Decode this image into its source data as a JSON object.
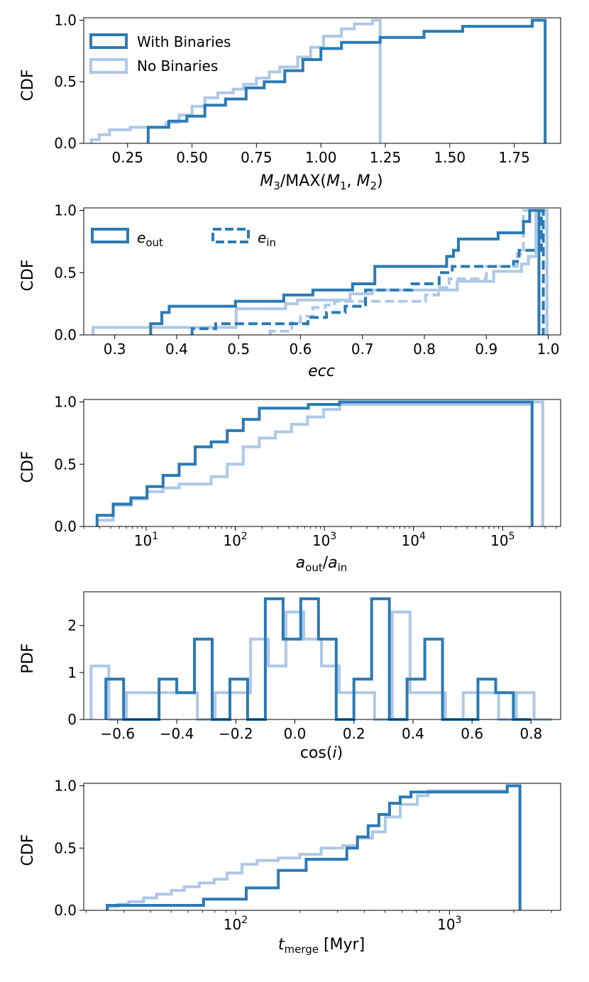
{
  "colors": {
    "dark": "#2a7ab5",
    "light": "#aec8e6",
    "axis": "#000000"
  },
  "legend1": {
    "labels": [
      "With Binaries",
      "No Binaries"
    ]
  },
  "legend2": {
    "labels": [
      "e_out",
      "e_in"
    ]
  },
  "chart_data": [
    {
      "type": "histogram-step-cdf",
      "ylabel": "CDF",
      "xlabel": "M3/MAX(M1, M2)",
      "xlim": [
        0.08,
        1.93
      ],
      "ylim": [
        0,
        1.02
      ],
      "xticks": [
        0.25,
        0.5,
        0.75,
        1.0,
        1.25,
        1.5,
        1.75
      ],
      "xtick_labels": [
        "0.25",
        "0.50",
        "0.75",
        "1.00",
        "1.25",
        "1.50",
        "1.75"
      ],
      "yticks": [
        0.0,
        0.5,
        1.0
      ],
      "ytick_labels": [
        "0.0",
        "0.5",
        "1.0"
      ],
      "legend": "top-left",
      "series": [
        {
          "name": "With Binaries",
          "color": "#2a7ab5",
          "edges": [
            0.33,
            0.41,
            0.48,
            0.55,
            0.63,
            0.71,
            0.78,
            0.86,
            0.93,
            1.0,
            1.08,
            1.23,
            1.4,
            1.55,
            1.82,
            1.87
          ],
          "values": [
            0.13,
            0.18,
            0.22,
            0.31,
            0.36,
            0.45,
            0.5,
            0.59,
            0.68,
            0.77,
            0.82,
            0.86,
            0.91,
            0.95,
            1.0
          ]
        },
        {
          "name": "No Binaries",
          "color": "#aec8e6",
          "edges": [
            0.11,
            0.14,
            0.18,
            0.26,
            0.4,
            0.45,
            0.5,
            0.55,
            0.6,
            0.66,
            0.7,
            0.75,
            0.8,
            0.84,
            0.91,
            0.96,
            1.01,
            1.08,
            1.13,
            1.2,
            1.23
          ],
          "values": [
            0.03,
            0.07,
            0.11,
            0.13,
            0.17,
            0.23,
            0.3,
            0.37,
            0.41,
            0.44,
            0.48,
            0.53,
            0.58,
            0.62,
            0.7,
            0.78,
            0.87,
            0.93,
            0.97,
            1.0
          ]
        }
      ]
    },
    {
      "type": "histogram-step-cdf",
      "ylabel": "CDF",
      "xlabel": "ecc",
      "xlim": [
        0.25,
        1.02
      ],
      "ylim": [
        0,
        1.02
      ],
      "xticks": [
        0.3,
        0.4,
        0.5,
        0.6,
        0.7,
        0.8,
        0.9,
        1.0
      ],
      "xtick_labels": [
        "0.3",
        "0.4",
        "0.5",
        "0.6",
        "0.7",
        "0.8",
        "0.9",
        "1.0"
      ],
      "yticks": [
        0.0,
        0.5,
        1.0
      ],
      "ytick_labels": [
        "0.0",
        "0.5",
        "1.0"
      ],
      "legend": "top-left",
      "series": [
        {
          "name": "e_out",
          "group": "With Binaries",
          "dash": false,
          "color": "#2a7ab5",
          "edges": [
            0.358,
            0.376,
            0.388,
            0.495,
            0.573,
            0.62,
            0.684,
            0.72,
            0.836,
            0.847,
            0.855,
            0.919,
            0.96,
            0.97,
            0.982,
            0.985
          ],
          "values": [
            0.09,
            0.18,
            0.23,
            0.27,
            0.32,
            0.36,
            0.41,
            0.55,
            0.63,
            0.68,
            0.77,
            0.82,
            0.91,
            1.0,
            1.0
          ]
        },
        {
          "name": "No Binaries e_out",
          "group": "No Binaries",
          "dash": false,
          "color": "#aec8e6",
          "edges": [
            0.265,
            0.496,
            0.576,
            0.595,
            0.68,
            0.716,
            0.853,
            0.912,
            0.957,
            0.968,
            0.98,
            0.998
          ],
          "values": [
            0.06,
            0.21,
            0.25,
            0.28,
            0.33,
            0.36,
            0.43,
            0.51,
            0.57,
            0.63,
            1.0
          ]
        },
        {
          "name": "e_in",
          "group": "With Binaries",
          "dash": true,
          "color": "#2a7ab5",
          "edges": [
            0.425,
            0.463,
            0.612,
            0.642,
            0.672,
            0.705,
            0.78,
            0.824,
            0.845,
            0.944,
            0.953,
            0.989,
            0.992
          ],
          "values": [
            0.05,
            0.09,
            0.14,
            0.18,
            0.23,
            0.36,
            0.41,
            0.5,
            0.55,
            0.59,
            0.68,
            1.0
          ]
        },
        {
          "name": "No Binaries e_in",
          "group": "No Binaries",
          "dash": true,
          "color": "#aec8e6",
          "edges": [
            0.551,
            0.586,
            0.6,
            0.62,
            0.64,
            0.655,
            0.802,
            0.823,
            0.84,
            0.9,
            0.95,
            0.96,
            0.998
          ],
          "values": [
            0.03,
            0.1,
            0.15,
            0.22,
            0.24,
            0.27,
            0.32,
            0.38,
            0.45,
            0.55,
            0.65,
            1.0
          ]
        }
      ]
    },
    {
      "type": "histogram-step-cdf",
      "ylabel": "CDF",
      "xlabel": "a_out/a_in",
      "xscale": "log",
      "xlim_log10": [
        0.3,
        5.65
      ],
      "ylim": [
        0,
        1.02
      ],
      "xticks_log10": [
        1,
        2,
        3,
        4,
        5
      ],
      "xtick_labels": [
        "10^1",
        "10^2",
        "10^3",
        "10^4",
        "10^5"
      ],
      "yticks": [
        0.0,
        0.5,
        1.0
      ],
      "ytick_labels": [
        "0.0",
        "0.5",
        "1.0"
      ],
      "series": [
        {
          "name": "With Binaries",
          "color": "#2a7ab5",
          "edges_log10": [
            0.45,
            0.63,
            0.83,
            1.01,
            1.19,
            1.37,
            1.55,
            1.73,
            1.91,
            2.09,
            2.27,
            2.45,
            2.82,
            3.17,
            5.33
          ],
          "values": [
            0.09,
            0.18,
            0.23,
            0.32,
            0.41,
            0.5,
            0.64,
            0.68,
            0.77,
            0.86,
            0.95,
            0.95,
            0.98,
            1.0
          ]
        },
        {
          "name": "No Binaries",
          "color": "#aec8e6",
          "edges_log10": [
            0.45,
            0.63,
            0.83,
            1.01,
            1.19,
            1.37,
            1.55,
            1.73,
            1.91,
            2.09,
            2.27,
            2.45,
            2.63,
            2.81,
            2.99,
            3.17,
            5.33,
            5.45
          ],
          "values": [
            0.05,
            0.17,
            0.22,
            0.28,
            0.31,
            0.34,
            0.34,
            0.4,
            0.5,
            0.64,
            0.71,
            0.76,
            0.82,
            0.88,
            0.94,
            0.98,
            1.0
          ]
        }
      ]
    },
    {
      "type": "histogram-step-pdf",
      "ylabel": "PDF",
      "xlabel": "cos(i)",
      "xlim": [
        -0.715,
        0.9
      ],
      "ylim": [
        0,
        2.72
      ],
      "xticks": [
        -0.6,
        -0.4,
        -0.2,
        0.0,
        0.2,
        0.4,
        0.6,
        0.8
      ],
      "xtick_labels": [
        "−0.6",
        "−0.4",
        "−0.2",
        "0.0",
        "0.2",
        "0.4",
        "0.6",
        "0.8"
      ],
      "yticks": [
        0,
        1,
        2
      ],
      "ytick_labels": [
        "0",
        "1",
        "2"
      ],
      "series": [
        {
          "name": "With Binaries",
          "color": "#2a7ab5",
          "edges": [
            -0.64,
            -0.58,
            -0.52,
            -0.46,
            -0.4,
            -0.34,
            -0.28,
            -0.22,
            -0.16,
            -0.1,
            -0.04,
            0.02,
            0.08,
            0.14,
            0.2,
            0.26,
            0.32,
            0.38,
            0.44,
            0.5,
            0.56,
            0.62,
            0.68,
            0.74,
            0.8
          ],
          "values": [
            0.86,
            0,
            0,
            0.86,
            0.57,
            1.71,
            0,
            0.86,
            0,
            2.57,
            1.71,
            2.57,
            1.71,
            0,
            0.86,
            2.57,
            0,
            0.86,
            1.71,
            0,
            0,
            0.86,
            0.57,
            0
          ]
        },
        {
          "name": "No Binaries",
          "color": "#aec8e6",
          "edges": [
            -0.69,
            -0.63,
            -0.57,
            -0.51,
            -0.45,
            -0.39,
            -0.33,
            -0.27,
            -0.21,
            -0.15,
            -0.09,
            -0.03,
            0.03,
            0.09,
            0.15,
            0.21,
            0.27,
            0.33,
            0.39,
            0.45,
            0.51,
            0.57,
            0.63,
            0.69,
            0.75,
            0.81,
            0.87
          ],
          "values": [
            1.14,
            0,
            0.57,
            0.57,
            0.57,
            0.57,
            0,
            0.57,
            0.57,
            1.71,
            1.14,
            2.29,
            1.71,
            1.14,
            0.57,
            0.57,
            0,
            2.29,
            0.57,
            0.57,
            0,
            0.57,
            0.57,
            0,
            0.57,
            0
          ]
        }
      ]
    },
    {
      "type": "histogram-step-cdf",
      "ylabel": "CDF",
      "xlabel": "t_merge [Myr]",
      "xscale": "log",
      "xlim_log10": [
        1.29,
        3.52
      ],
      "ylim": [
        0,
        1.02
      ],
      "xticks_log10": [
        2,
        3
      ],
      "xtick_labels": [
        "10^2",
        "10^3"
      ],
      "yticks": [
        0.0,
        0.5,
        1.0
      ],
      "ytick_labels": [
        "0.0",
        "0.5",
        "1.0"
      ],
      "series": [
        {
          "name": "With Binaries",
          "color": "#2a7ab5",
          "edges_log10": [
            1.4,
            1.85,
            2.05,
            2.2,
            2.33,
            2.52,
            2.57,
            2.62,
            2.67,
            2.72,
            2.77,
            2.82,
            2.87,
            3.27,
            3.33
          ],
          "values": [
            0.04,
            0.09,
            0.18,
            0.32,
            0.41,
            0.5,
            0.59,
            0.68,
            0.77,
            0.86,
            0.91,
            0.95,
            0.95,
            1.0
          ]
        },
        {
          "name": "No Binaries",
          "color": "#aec8e6",
          "edges_log10": [
            1.4,
            1.45,
            1.5,
            1.57,
            1.63,
            1.7,
            1.76,
            1.83,
            1.9,
            1.96,
            2.03,
            2.1,
            2.2,
            2.3,
            2.4,
            2.5,
            2.57,
            2.64,
            2.7,
            2.77,
            2.85,
            2.9,
            3.27,
            3.33
          ],
          "values": [
            0.03,
            0.05,
            0.07,
            0.1,
            0.13,
            0.16,
            0.19,
            0.22,
            0.25,
            0.3,
            0.37,
            0.4,
            0.42,
            0.45,
            0.5,
            0.52,
            0.58,
            0.63,
            0.75,
            0.85,
            0.92,
            0.96,
            1.0
          ]
        }
      ]
    }
  ]
}
